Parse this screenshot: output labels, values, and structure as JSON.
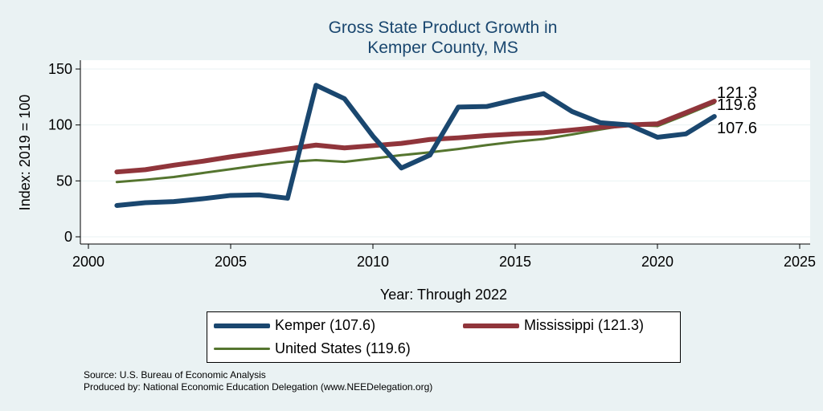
{
  "chart_data": {
    "type": "line",
    "title": [
      "Gross State Product Growth in",
      "Kemper County, MS"
    ],
    "xlabel": "Year: Through 2022",
    "ylabel": "Index: 2019 = 100",
    "xlim": [
      2000,
      2025
    ],
    "ylim": [
      0,
      150
    ],
    "xticks": [
      2000,
      2005,
      2010,
      2015,
      2020,
      2025
    ],
    "yticks": [
      0,
      50,
      100,
      150
    ],
    "x": [
      2001,
      2002,
      2003,
      2004,
      2005,
      2006,
      2007,
      2008,
      2009,
      2010,
      2011,
      2012,
      2013,
      2014,
      2015,
      2016,
      2017,
      2018,
      2019,
      2020,
      2021,
      2022
    ],
    "series": [
      {
        "name": "Kemper",
        "legend": "Kemper  (107.6)",
        "end_label": "107.6",
        "color": "#1a476f",
        "values": [
          28,
          30.5,
          31.5,
          34,
          37,
          37.5,
          34.5,
          135.5,
          123.5,
          90,
          61.5,
          73,
          116,
          116.5,
          122.5,
          128,
          112,
          102,
          100,
          89,
          92,
          107.6
        ]
      },
      {
        "name": "Mississippi",
        "legend": "Mississippi (121.3)",
        "end_label": "121.3",
        "color": "#90353b",
        "values": [
          58,
          60,
          64,
          67.5,
          71.5,
          75,
          78.5,
          82,
          79.5,
          81.5,
          83.5,
          87,
          88.5,
          90.5,
          92,
          93,
          95.5,
          98,
          100,
          101,
          111,
          121.3
        ]
      },
      {
        "name": "United States",
        "legend": "United States (119.6)",
        "end_label": "119.6",
        "color": "#55752f",
        "values": [
          49,
          51,
          53.5,
          57,
          60.5,
          64,
          67,
          68.5,
          67,
          70,
          73,
          75.5,
          78.5,
          82,
          85,
          87.5,
          91.5,
          96,
          100,
          99,
          109,
          119.6
        ]
      }
    ]
  },
  "footer": {
    "source": "Source: U.S. Bureau of Economic Analysis",
    "produced": "Produced by: National Economic Education Delegation (www.NEEDelegation.org)"
  }
}
